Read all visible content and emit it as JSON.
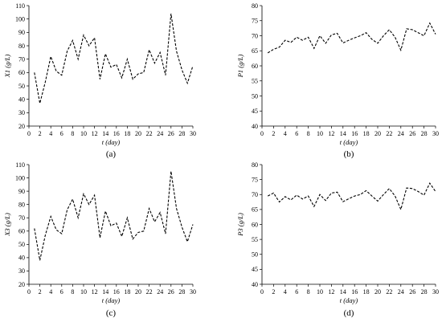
{
  "chart_data": [
    {
      "type": "line",
      "panel_label": "(a)",
      "xlabel": "t (day)",
      "ylabel": "X1 (g/L)",
      "xlim": [
        0,
        30
      ],
      "ylim": [
        20,
        110
      ],
      "xticks": [
        0,
        2,
        4,
        6,
        8,
        10,
        12,
        14,
        16,
        18,
        20,
        22,
        24,
        26,
        28,
        30
      ],
      "yticks": [
        20,
        30,
        40,
        50,
        60,
        70,
        80,
        90,
        100,
        110
      ],
      "line_style": "dashed",
      "series": [
        {
          "x": [
            1,
            2,
            3,
            4,
            5,
            6,
            7,
            8,
            9,
            10,
            11,
            12,
            13,
            14,
            15,
            16,
            17,
            18,
            19,
            20,
            21,
            22,
            23,
            24,
            25,
            26,
            27,
            28,
            29,
            30
          ],
          "values": [
            60,
            37,
            53,
            72,
            61,
            58,
            76,
            84,
            70,
            88,
            80,
            86,
            55,
            74,
            64,
            66,
            56,
            70,
            55,
            59,
            60,
            77,
            67,
            75,
            58,
            104,
            76,
            62,
            52,
            65
          ]
        }
      ]
    },
    {
      "type": "line",
      "panel_label": "(b)",
      "xlabel": "t (day)",
      "ylabel": "P1 (g/L)",
      "xlim": [
        0,
        30
      ],
      "ylim": [
        40,
        80
      ],
      "xticks": [
        0,
        2,
        4,
        6,
        8,
        10,
        12,
        14,
        16,
        18,
        20,
        22,
        24,
        26,
        28,
        30
      ],
      "yticks": [
        40,
        45,
        50,
        55,
        60,
        65,
        70,
        75,
        80
      ],
      "line_style": "dashed",
      "series": [
        {
          "x": [
            1,
            2,
            3,
            4,
            5,
            6,
            7,
            8,
            9,
            10,
            11,
            12,
            13,
            14,
            15,
            16,
            17,
            18,
            19,
            20,
            21,
            22,
            23,
            24,
            25,
            26,
            27,
            28,
            29,
            30
          ],
          "values": [
            64.3,
            65.5,
            66.2,
            68.5,
            67.8,
            69.5,
            68.5,
            69.5,
            65.8,
            70,
            67.5,
            70.3,
            70.8,
            67.6,
            68.5,
            69.3,
            70,
            71,
            68.8,
            67.5,
            70,
            72,
            69.5,
            65.2,
            72.3,
            72,
            71,
            70,
            74.2,
            70.5
          ]
        }
      ]
    },
    {
      "type": "line",
      "panel_label": "(c)",
      "xlabel": "t (day)",
      "ylabel": "X3 (g/L)",
      "xlim": [
        0,
        30
      ],
      "ylim": [
        20,
        110
      ],
      "xticks": [
        0,
        2,
        4,
        6,
        8,
        10,
        12,
        14,
        16,
        18,
        20,
        22,
        24,
        26,
        28,
        30
      ],
      "yticks": [
        20,
        30,
        40,
        50,
        60,
        70,
        80,
        90,
        100,
        110
      ],
      "line_style": "dashed",
      "series": [
        {
          "x": [
            1,
            2,
            3,
            4,
            5,
            6,
            7,
            8,
            9,
            10,
            11,
            12,
            13,
            14,
            15,
            16,
            17,
            18,
            19,
            20,
            21,
            22,
            23,
            24,
            25,
            26,
            27,
            28,
            29,
            30
          ],
          "values": [
            62,
            38,
            57,
            71,
            61,
            58,
            76,
            84,
            70,
            88,
            80,
            87,
            55,
            75,
            64,
            66,
            56,
            70,
            54,
            59,
            60,
            77,
            67,
            74,
            58,
            105,
            77,
            63,
            52,
            65
          ]
        }
      ]
    },
    {
      "type": "line",
      "panel_label": "(d)",
      "xlabel": "t (day)",
      "ylabel": "P3 (g/L)",
      "xlim": [
        0,
        30
      ],
      "ylim": [
        40,
        80
      ],
      "xticks": [
        0,
        2,
        4,
        6,
        8,
        10,
        12,
        14,
        16,
        18,
        20,
        22,
        24,
        26,
        28,
        30
      ],
      "yticks": [
        40,
        45,
        50,
        55,
        60,
        65,
        70,
        75,
        80
      ],
      "line_style": "dashed",
      "series": [
        {
          "x": [
            1,
            2,
            3,
            4,
            5,
            6,
            7,
            8,
            9,
            10,
            11,
            12,
            13,
            14,
            15,
            16,
            17,
            18,
            19,
            20,
            21,
            22,
            23,
            24,
            25,
            26,
            27,
            28,
            29,
            30
          ],
          "values": [
            69.5,
            70.5,
            67.5,
            69.3,
            68.2,
            69.8,
            68.5,
            69.5,
            66,
            70,
            68,
            70.5,
            70.8,
            67.6,
            68.6,
            69.5,
            70,
            71.3,
            69.5,
            67.8,
            70,
            72,
            69.5,
            65,
            72.2,
            72,
            71,
            69.8,
            73.8,
            71
          ]
        }
      ]
    }
  ]
}
